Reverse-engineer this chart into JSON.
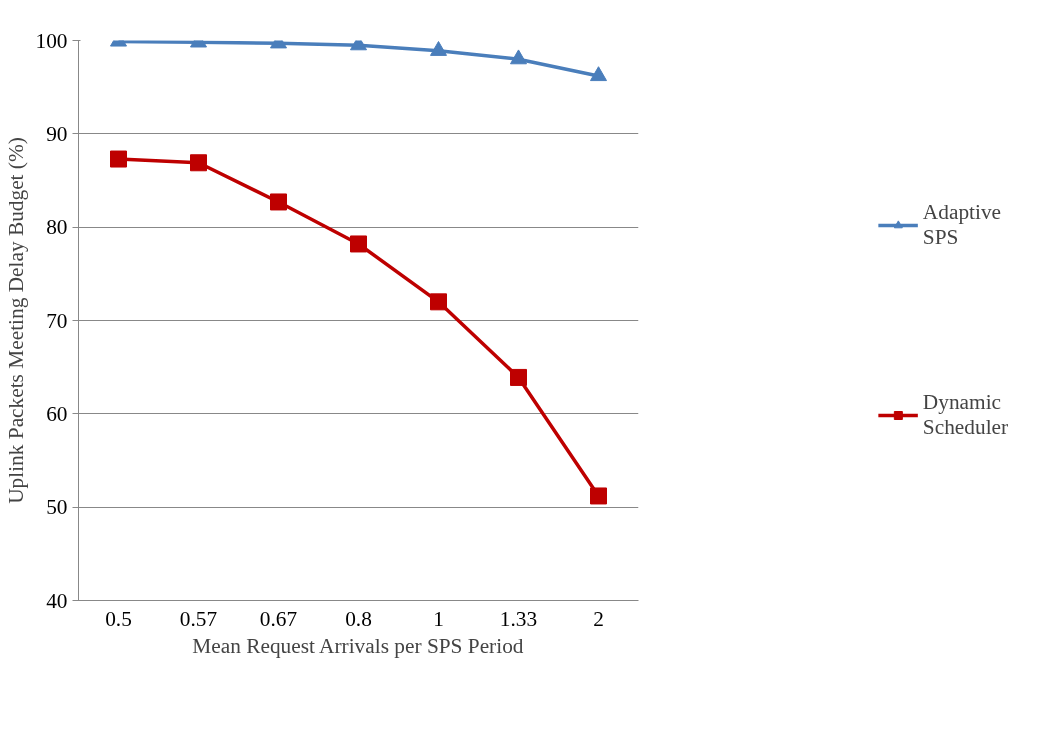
{
  "chart_data": {
    "type": "line",
    "xlabel": "Mean Request Arrivals per SPS Period",
    "ylabel": "Uplink Packets Meeting Delay Budget (%)",
    "categories": [
      "0.5",
      "0.57",
      "0.67",
      "0.8",
      "1",
      "1.33",
      "2"
    ],
    "ylim": [
      40,
      100
    ],
    "yticks": [
      40,
      50,
      60,
      70,
      80,
      90,
      100
    ],
    "grid": "y",
    "legend": "right",
    "series": [
      {
        "name": "Adaptive SPS",
        "color": "#4a7ebb",
        "marker": "triangle",
        "values": [
          99.9,
          99.8,
          99.7,
          99.5,
          98.9,
          98.0,
          96.2
        ]
      },
      {
        "name": "Dynamic Scheduler",
        "color": "#be0000",
        "marker": "square",
        "values": [
          87.3,
          86.9,
          82.7,
          78.2,
          72.0,
          63.9,
          51.2
        ]
      }
    ]
  }
}
